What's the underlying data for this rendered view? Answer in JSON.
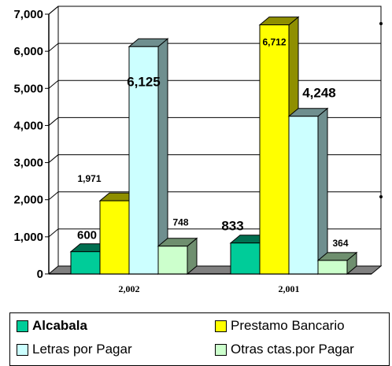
{
  "chart_data": {
    "type": "bar",
    "categories": [
      "2,002",
      "2,001"
    ],
    "ylim": [
      0,
      7000
    ],
    "yticks": [
      "0",
      "1,000",
      "2,000",
      "3,000",
      "4,000",
      "5,000",
      "6,000",
      "7,000"
    ],
    "grid": true,
    "legend_position": "bottom",
    "series": [
      {
        "name": "Alcabala",
        "values": [
          600,
          833
        ],
        "labels": [
          "600",
          "833"
        ],
        "color": "#00cc99",
        "side_color": "#006f50"
      },
      {
        "name": "Prestamo Bancario",
        "values": [
          1971,
          6712
        ],
        "labels": [
          "1,971",
          "6,712"
        ],
        "color": "#ffff00",
        "side_color": "#8f8f00"
      },
      {
        "name": "Letras por Pagar",
        "values": [
          6125,
          4248
        ],
        "labels": [
          "6,125",
          "4,248"
        ],
        "color": "#ccffff",
        "side_color": "#6f8f8f"
      },
      {
        "name": "Otras ctas.por Pagar",
        "values": [
          748,
          364
        ],
        "labels": [
          "748",
          "364"
        ],
        "color": "#ccffcc",
        "side_color": "#6f8f6f"
      }
    ],
    "floor_color": "#808080"
  },
  "legend": {
    "items": [
      "Alcabala",
      "Prestamo Bancario",
      "Letras por Pagar",
      "Otras ctas.por Pagar"
    ]
  }
}
